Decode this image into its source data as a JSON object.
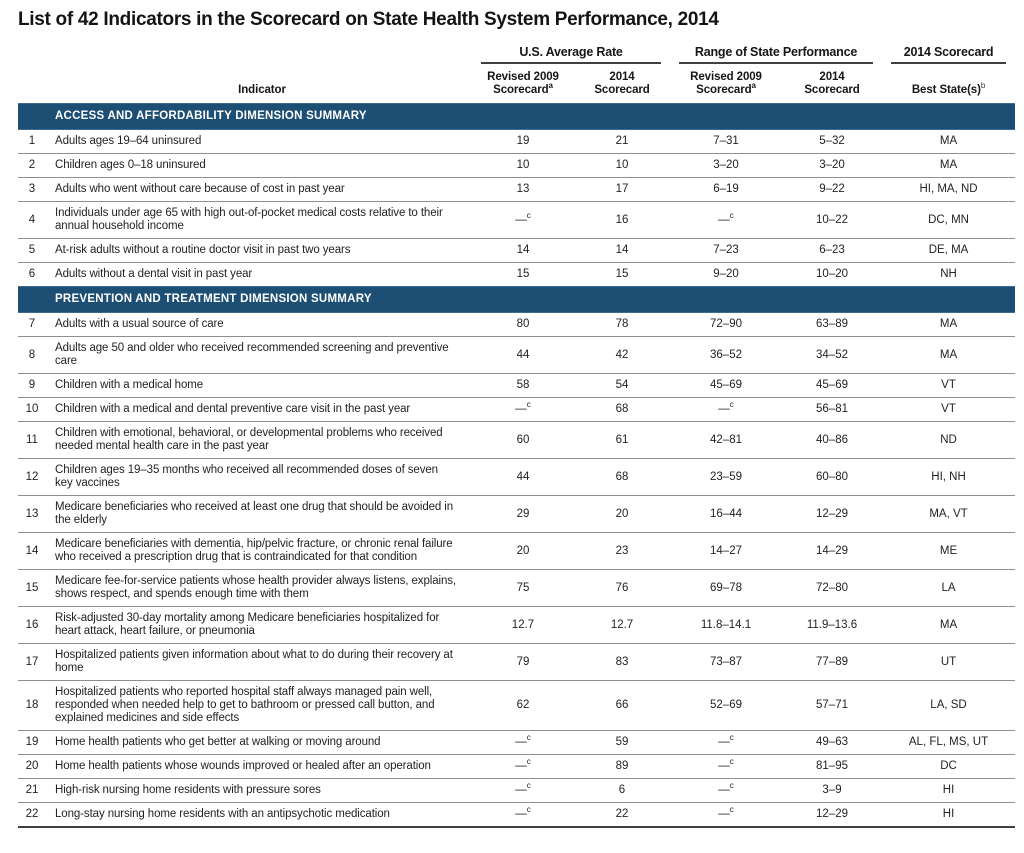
{
  "title": "List of 42 Indicators in the Scorecard on State Health System Performance, 2014",
  "colors": {
    "section_bar": "#1d4e74",
    "section_bar_edge": "#44698e",
    "section_bar_text": "#ffffff",
    "row_rule": "#8f8f8f",
    "heavy_rule": "#3f3f3f"
  },
  "table": {
    "header": {
      "indicator_label": "Indicator",
      "groups": [
        {
          "label": "U.S. Average Rate"
        },
        {
          "label": "Range of State Performance"
        },
        {
          "label": "2014 Scorecard"
        }
      ],
      "subcolumns": [
        {
          "line1": "Revised 2009",
          "line2": "Scorecard",
          "sup": "a"
        },
        {
          "line1": "2014",
          "line2": "Scorecard",
          "sup": ""
        },
        {
          "line1": "Revised 2009",
          "line2": "Scorecard",
          "sup": "a"
        },
        {
          "line1": "2014",
          "line2": "Scorecard",
          "sup": ""
        },
        {
          "line2": "Best State(s)",
          "sup": "b"
        }
      ]
    },
    "sections": [
      {
        "heading": "ACCESS AND AFFORDABILITY DIMENSION SUMMARY",
        "rows": [
          {
            "num": "1",
            "indicator": "Adults ages 19–64 uninsured",
            "us_rev2009": "19",
            "us_2014": "21",
            "range_rev2009": "7–31",
            "range_2014": "5–32",
            "best": "MA"
          },
          {
            "num": "2",
            "indicator": "Children ages 0–18 uninsured",
            "us_rev2009": "10",
            "us_2014": "10",
            "range_rev2009": "3–20",
            "range_2014": "3–20",
            "best": "MA"
          },
          {
            "num": "3",
            "indicator": "Adults who went without care because of cost in past year",
            "us_rev2009": "13",
            "us_2014": "17",
            "range_rev2009": "6–19",
            "range_2014": "9–22",
            "best": "HI, MA, ND"
          },
          {
            "num": "4",
            "indicator": "Individuals under age 65 with high out-of-pocket medical costs relative to their annual household income",
            "us_rev2009": {
              "v": "—",
              "sup": "c"
            },
            "us_2014": "16",
            "range_rev2009": {
              "v": "—",
              "sup": "c"
            },
            "range_2014": "10–22",
            "best": "DC, MN"
          },
          {
            "num": "5",
            "indicator": "At-risk adults without a routine doctor visit in past two years",
            "us_rev2009": "14",
            "us_2014": "14",
            "range_rev2009": "7–23",
            "range_2014": "6–23",
            "best": "DE, MA"
          },
          {
            "num": "6",
            "indicator": "Adults without a dental visit in past year",
            "us_rev2009": "15",
            "us_2014": "15",
            "range_rev2009": "9–20",
            "range_2014": "10–20",
            "best": "NH"
          }
        ]
      },
      {
        "heading": "PREVENTION AND TREATMENT DIMENSION SUMMARY",
        "rows": [
          {
            "num": "7",
            "indicator": "Adults with a usual source of care",
            "us_rev2009": "80",
            "us_2014": "78",
            "range_rev2009": "72–90",
            "range_2014": "63–89",
            "best": "MA"
          },
          {
            "num": "8",
            "indicator": "Adults age 50 and older who received recommended screening and preventive care",
            "us_rev2009": "44",
            "us_2014": "42",
            "range_rev2009": "36–52",
            "range_2014": "34–52",
            "best": "MA"
          },
          {
            "num": "9",
            "indicator": "Children with a medical home",
            "us_rev2009": "58",
            "us_2014": "54",
            "range_rev2009": "45–69",
            "range_2014": "45–69",
            "best": "VT"
          },
          {
            "num": "10",
            "indicator": "Children with a medical and dental preventive care visit in the past year",
            "us_rev2009": {
              "v": "—",
              "sup": "c"
            },
            "us_2014": "68",
            "range_rev2009": {
              "v": "—",
              "sup": "c"
            },
            "range_2014": "56–81",
            "best": "VT"
          },
          {
            "num": "11",
            "indicator": "Children with emotional, behavioral, or developmental problems who received needed mental health care in the past year",
            "us_rev2009": "60",
            "us_2014": "61",
            "range_rev2009": "42–81",
            "range_2014": "40–86",
            "best": "ND"
          },
          {
            "num": "12",
            "indicator": "Children ages 19–35 months who received all recommended doses of seven key vaccines",
            "us_rev2009": "44",
            "us_2014": "68",
            "range_rev2009": "23–59",
            "range_2014": "60–80",
            "best": "HI, NH"
          },
          {
            "num": "13",
            "indicator": "Medicare beneficiaries who received at least one drug that should be avoided in the elderly",
            "us_rev2009": "29",
            "us_2014": "20",
            "range_rev2009": "16–44",
            "range_2014": "12–29",
            "best": "MA, VT"
          },
          {
            "num": "14",
            "indicator": "Medicare beneficiaries with dementia, hip/pelvic fracture, or chronic renal failure who received a prescription drug that is contraindicated for that condition",
            "us_rev2009": "20",
            "us_2014": "23",
            "range_rev2009": "14–27",
            "range_2014": "14–29",
            "best": "ME"
          },
          {
            "num": "15",
            "indicator": "Medicare fee-for-service patients whose health provider always listens, explains, shows respect, and spends enough time with them",
            "us_rev2009": "75",
            "us_2014": "76",
            "range_rev2009": "69–78",
            "range_2014": "72–80",
            "best": "LA"
          },
          {
            "num": "16",
            "indicator": "Risk-adjusted 30-day mortality among Medicare beneficiaries hospitalized for heart attack, heart failure, or pneumonia",
            "us_rev2009": "12.7",
            "us_2014": "12.7",
            "range_rev2009": "11.8–14.1",
            "range_2014": "11.9–13.6",
            "best": "MA"
          },
          {
            "num": "17",
            "indicator": "Hospitalized patients given information about what to do during their recovery at home",
            "us_rev2009": "79",
            "us_2014": "83",
            "range_rev2009": "73–87",
            "range_2014": "77–89",
            "best": "UT"
          },
          {
            "num": "18",
            "indicator": "Hospitalized patients who reported hospital staff always managed pain well, responded when needed help to get to bathroom or pressed call button, and explained medicines and side effects",
            "us_rev2009": "62",
            "us_2014": "66",
            "range_rev2009": "52–69",
            "range_2014": "57–71",
            "best": "LA, SD"
          },
          {
            "num": "19",
            "indicator": "Home health patients who get better at walking or moving around",
            "us_rev2009": {
              "v": "—",
              "sup": "c"
            },
            "us_2014": "59",
            "range_rev2009": {
              "v": "—",
              "sup": "c"
            },
            "range_2014": "49–63",
            "best": "AL, FL, MS, UT"
          },
          {
            "num": "20",
            "indicator": "Home health patients whose wounds improved or healed after an operation",
            "us_rev2009": {
              "v": "—",
              "sup": "c"
            },
            "us_2014": "89",
            "range_rev2009": {
              "v": "—",
              "sup": "c"
            },
            "range_2014": "81–95",
            "best": "DC"
          },
          {
            "num": "21",
            "indicator": "High-risk nursing home residents with pressure sores",
            "us_rev2009": {
              "v": "—",
              "sup": "c"
            },
            "us_2014": "6",
            "range_rev2009": {
              "v": "—",
              "sup": "c"
            },
            "range_2014": "3–9",
            "best": "HI"
          },
          {
            "num": "22",
            "indicator": "Long-stay nursing home residents with an antipsychotic medication",
            "us_rev2009": {
              "v": "—",
              "sup": "c"
            },
            "us_2014": "22",
            "range_rev2009": {
              "v": "—",
              "sup": "c"
            },
            "range_2014": "12–29",
            "best": "HI"
          }
        ]
      }
    ]
  }
}
